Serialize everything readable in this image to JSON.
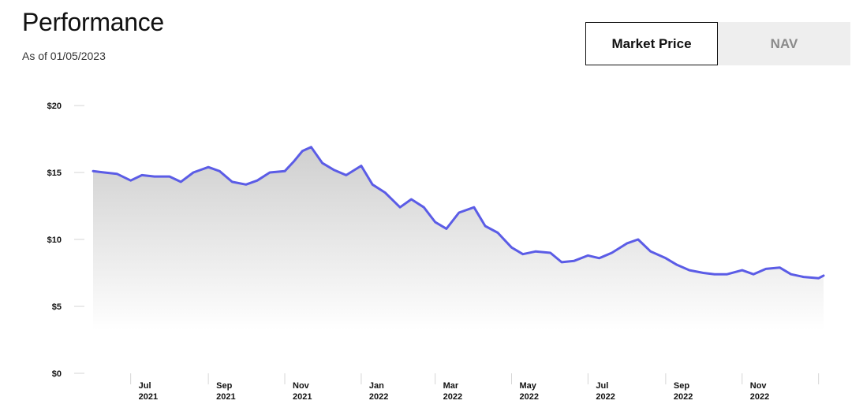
{
  "header": {
    "title": "Performance",
    "as_of": "As of 01/05/2023"
  },
  "toggle": {
    "market_price_label": "Market Price",
    "nav_label": "NAV",
    "active": "market_price"
  },
  "colors": {
    "line": "#5b5ce6",
    "area_top": "#cfcfcf",
    "area_bottom": "#ffffff"
  },
  "chart_data": {
    "type": "area",
    "title": "",
    "xlabel": "",
    "ylabel": "",
    "ylim": [
      0,
      20
    ],
    "y_ticks": [
      {
        "value": 20,
        "label": "$20"
      },
      {
        "value": 15,
        "label": "$15"
      },
      {
        "value": 10,
        "label": "$10"
      },
      {
        "value": 5,
        "label": "$5"
      },
      {
        "value": 0,
        "label": "$0"
      }
    ],
    "x_ticks": [
      {
        "date": "2021-07-01",
        "month": "Jul",
        "year": "2021"
      },
      {
        "date": "2021-09-01",
        "month": "Sep",
        "year": "2021"
      },
      {
        "date": "2021-11-01",
        "month": "Nov",
        "year": "2021"
      },
      {
        "date": "2022-01-01",
        "month": "Jan",
        "year": "2022"
      },
      {
        "date": "2022-03-01",
        "month": "Mar",
        "year": "2022"
      },
      {
        "date": "2022-05-01",
        "month": "May",
        "year": "2022"
      },
      {
        "date": "2022-07-01",
        "month": "Jul",
        "year": "2022"
      },
      {
        "date": "2022-09-01",
        "month": "Sep",
        "year": "2022"
      },
      {
        "date": "2022-11-01",
        "month": "Nov",
        "year": "2022"
      },
      {
        "date": "2023-01-01",
        "month": "",
        "year": ""
      }
    ],
    "grid": false,
    "series": [
      {
        "x": [
          "2021-06-01",
          "2021-06-10",
          "2021-06-20",
          "2021-07-01",
          "2021-07-10",
          "2021-07-20",
          "2021-08-01",
          "2021-08-10",
          "2021-08-20",
          "2021-09-01",
          "2021-09-10",
          "2021-09-20",
          "2021-10-01",
          "2021-10-10",
          "2021-10-20",
          "2021-11-01",
          "2021-11-08",
          "2021-11-15",
          "2021-11-22",
          "2021-12-01",
          "2021-12-10",
          "2021-12-20",
          "2022-01-01",
          "2022-01-10",
          "2022-01-20",
          "2022-02-01",
          "2022-02-10",
          "2022-02-20",
          "2022-03-01",
          "2022-03-10",
          "2022-03-20",
          "2022-04-01",
          "2022-04-10",
          "2022-04-20",
          "2022-05-01",
          "2022-05-10",
          "2022-05-20",
          "2022-06-01",
          "2022-06-10",
          "2022-06-20",
          "2022-07-01",
          "2022-07-10",
          "2022-07-20",
          "2022-08-01",
          "2022-08-10",
          "2022-08-20",
          "2022-09-01",
          "2022-09-10",
          "2022-09-20",
          "2022-10-01",
          "2022-10-10",
          "2022-10-20",
          "2022-11-01",
          "2022-11-10",
          "2022-11-20",
          "2022-12-01",
          "2022-12-10",
          "2022-12-20",
          "2023-01-01",
          "2023-01-05"
        ],
        "values": [
          15.1,
          15.0,
          14.9,
          14.4,
          14.8,
          14.7,
          14.7,
          14.3,
          15.0,
          15.4,
          15.1,
          14.3,
          14.1,
          14.4,
          15.0,
          15.1,
          15.8,
          16.6,
          16.9,
          15.7,
          15.2,
          14.8,
          15.5,
          14.1,
          13.5,
          12.4,
          13.0,
          12.4,
          11.3,
          10.8,
          12.0,
          12.4,
          11.0,
          10.5,
          9.4,
          8.9,
          9.1,
          9.0,
          8.3,
          8.4,
          8.8,
          8.6,
          9.0,
          9.7,
          10.0,
          9.1,
          8.6,
          8.1,
          7.7,
          7.5,
          7.4,
          7.4,
          7.7,
          7.4,
          7.8,
          7.9,
          7.4,
          7.2,
          7.1,
          7.3
        ]
      }
    ]
  }
}
